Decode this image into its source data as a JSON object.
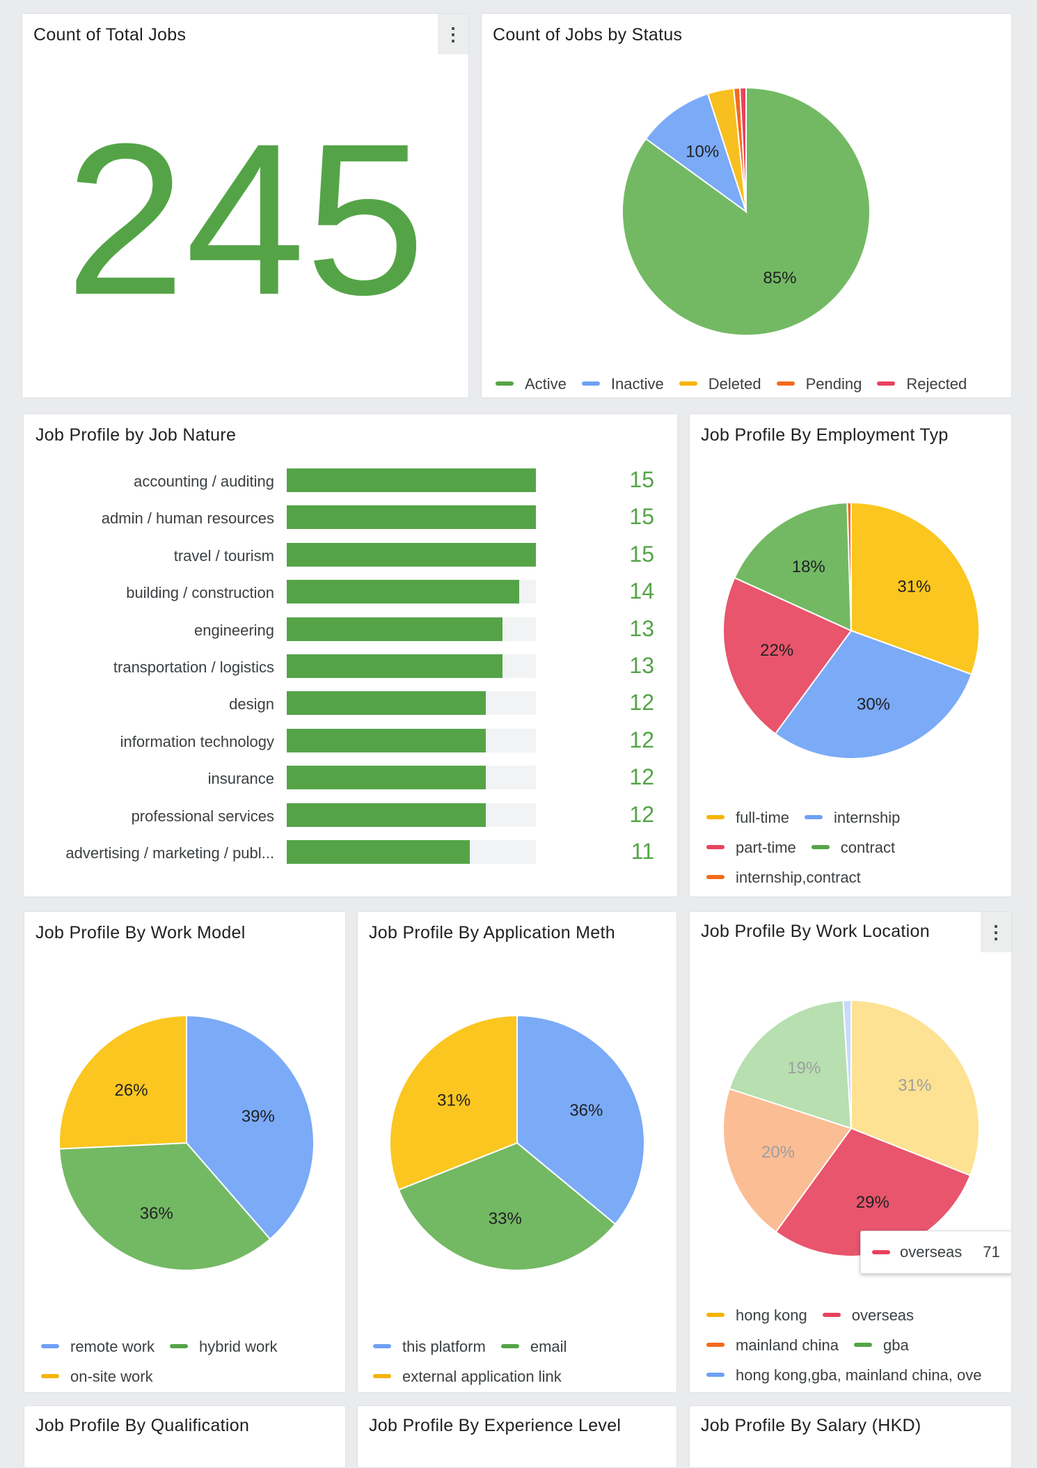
{
  "colors": {
    "green": "#54a447",
    "blue": "#7baaf7",
    "yellow": "#f7bf1f",
    "orange": "#f26b1d",
    "red": "#e8425c",
    "light_blue": "#c6dafc",
    "light_green": "#b7dfb0",
    "light_yellow": "#fde293",
    "light_orange": "#fbbd94"
  },
  "panels": {
    "total_jobs": {
      "title": "Count of Total Jobs",
      "value": "245"
    },
    "jobs_by_status": {
      "title": "Count of Jobs by Status"
    },
    "job_nature": {
      "title": "Job Profile by Job Nature"
    },
    "employment_type": {
      "title": "Job Profile By Employment Typ"
    },
    "work_model": {
      "title": "Job Profile By Work Model"
    },
    "application_method": {
      "title": "Job Profile By Application Meth"
    },
    "work_location": {
      "title": "Job Profile By Work Location"
    },
    "qualification": {
      "title": "Job Profile By Qualification"
    },
    "experience_level": {
      "title": "Job Profile By Experience Level"
    },
    "salary": {
      "title": "Job Profile By Salary (HKD)"
    }
  },
  "tooltip": {
    "label": "overseas",
    "value": "71"
  },
  "chart_data": [
    {
      "id": "status",
      "type": "pie",
      "title": "Count of Jobs by Status",
      "slices": [
        {
          "label": "Active",
          "value": 85,
          "data_label": "85%",
          "color": "#73b963"
        },
        {
          "label": "Inactive",
          "value": 10,
          "data_label": "10%",
          "color": "#7baaf7"
        },
        {
          "label": "Deleted",
          "value": 3.4,
          "data_label": "",
          "color": "#f7bf1f"
        },
        {
          "label": "Pending",
          "value": 0.8,
          "data_label": "",
          "color": "#f26b1d"
        },
        {
          "label": "Rejected",
          "value": 0.8,
          "data_label": "",
          "color": "#e8425c"
        }
      ],
      "legend": [
        {
          "label": "Active",
          "color": "#54a447"
        },
        {
          "label": "Inactive",
          "color": "#6ea0f5"
        },
        {
          "label": "Deleted",
          "color": "#f5b400"
        },
        {
          "label": "Pending",
          "color": "#f26b1d"
        },
        {
          "label": "Rejected",
          "color": "#e8425c"
        }
      ]
    },
    {
      "id": "job_nature",
      "type": "bar",
      "title": "Job Profile by Job Nature",
      "categories": [
        "accounting / auditing",
        "admin / human resources",
        "travel / tourism",
        "building / construction",
        "engineering",
        "transportation / logistics",
        "design",
        "information technology",
        "insurance",
        "professional services",
        "advertising / marketing / publ..."
      ],
      "values": [
        15,
        15,
        15,
        14,
        13,
        13,
        12,
        12,
        12,
        12,
        11
      ],
      "xlim": [
        0,
        15
      ]
    },
    {
      "id": "employment",
      "type": "pie",
      "title": "Job Profile By Employment Typ",
      "slices": [
        {
          "label": "full-time",
          "value": 31,
          "data_label": "31%",
          "color": "#fbc61f"
        },
        {
          "label": "internship",
          "value": 30,
          "data_label": "30%",
          "color": "#7baaf7"
        },
        {
          "label": "part-time",
          "value": 22,
          "data_label": "22%",
          "color": "#e8556c"
        },
        {
          "label": "contract",
          "value": 18,
          "data_label": "18%",
          "color": "#73b963"
        },
        {
          "label": "internship,contract",
          "value": 0.5,
          "data_label": "",
          "color": "#f26b1d"
        }
      ],
      "legend": [
        {
          "label": "full-time",
          "color": "#f5b400"
        },
        {
          "label": "internship",
          "color": "#6ea0f5"
        },
        {
          "label": "part-time",
          "color": "#e8425c"
        },
        {
          "label": "contract",
          "color": "#54a447"
        },
        {
          "label": "internship,contract",
          "color": "#f26b1d"
        }
      ]
    },
    {
      "id": "work_model",
      "type": "pie",
      "title": "Job Profile By Work Model",
      "slices": [
        {
          "label": "remote work",
          "value": 39,
          "data_label": "39%",
          "color": "#7baaf7"
        },
        {
          "label": "hybrid work",
          "value": 36,
          "data_label": "36%",
          "color": "#73b963"
        },
        {
          "label": "on-site work",
          "value": 26,
          "data_label": "26%",
          "color": "#fbc61f"
        }
      ],
      "legend": [
        {
          "label": "remote work",
          "color": "#6ea0f5"
        },
        {
          "label": "hybrid work",
          "color": "#54a447"
        },
        {
          "label": "on-site work",
          "color": "#f5b400"
        }
      ]
    },
    {
      "id": "application",
      "type": "pie",
      "title": "Job Profile By Application Meth",
      "slices": [
        {
          "label": "this platform",
          "value": 36,
          "data_label": "36%",
          "color": "#7baaf7"
        },
        {
          "label": "email",
          "value": 33,
          "data_label": "33%",
          "color": "#73b963"
        },
        {
          "label": "external application link",
          "value": 31,
          "data_label": "31%",
          "color": "#fbc61f"
        }
      ],
      "legend": [
        {
          "label": "this platform",
          "color": "#6ea0f5"
        },
        {
          "label": "email",
          "color": "#54a447"
        },
        {
          "label": "external application link",
          "color": "#f5b400"
        }
      ]
    },
    {
      "id": "location",
      "type": "pie",
      "title": "Job Profile By Work Location",
      "slices": [
        {
          "label": "hong kong",
          "value": 31,
          "data_label": "31%",
          "color": "#fde293"
        },
        {
          "label": "overseas",
          "value": 29,
          "data_label": "29%",
          "color": "#e8556c"
        },
        {
          "label": "mainland china",
          "value": 20,
          "data_label": "20%",
          "color": "#fbbd94"
        },
        {
          "label": "gba",
          "value": 19,
          "data_label": "19%",
          "color": "#b7dfb0"
        },
        {
          "label": "hong kong,gba, mainland china, ove",
          "value": 1,
          "data_label": "",
          "color": "#c6dafc"
        }
      ],
      "legend": [
        {
          "label": "hong kong",
          "color": "#f5b400"
        },
        {
          "label": "overseas",
          "color": "#e8425c"
        },
        {
          "label": "mainland china",
          "color": "#f26b1d"
        },
        {
          "label": "gba",
          "color": "#54a447"
        },
        {
          "label": "hong kong,gba, mainland china, ove",
          "color": "#6ea0f5"
        }
      ]
    }
  ]
}
